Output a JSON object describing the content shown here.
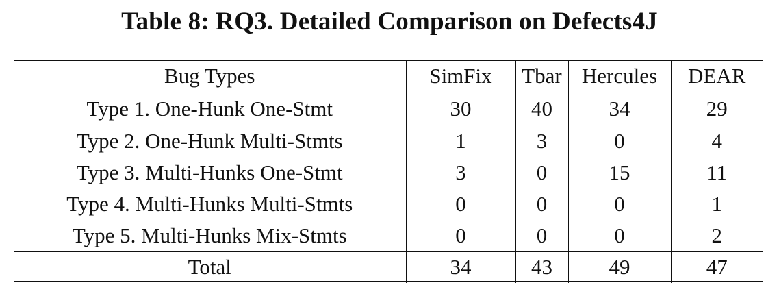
{
  "caption": "Table 8: RQ3. Detailed Comparison on Defects4J",
  "table": {
    "headers": [
      "Bug Types",
      "SimFix",
      "Tbar",
      "Hercules",
      "DEAR"
    ],
    "rows": [
      {
        "label": "Type 1. One-Hunk One-Stmt",
        "values": [
          "30",
          "40",
          "34",
          "29"
        ]
      },
      {
        "label": "Type 2. One-Hunk Multi-Stmts",
        "values": [
          "1",
          "3",
          "0",
          "4"
        ]
      },
      {
        "label": "Type 3. Multi-Hunks One-Stmt",
        "values": [
          "3",
          "0",
          "15",
          "11"
        ]
      },
      {
        "label": "Type 4. Multi-Hunks Multi-Stmts",
        "values": [
          "0",
          "0",
          "0",
          "1"
        ]
      },
      {
        "label": "Type 5. Multi-Hunks Mix-Stmts",
        "values": [
          "0",
          "0",
          "0",
          "2"
        ]
      }
    ],
    "total": {
      "label": "Total",
      "values": [
        "34",
        "43",
        "49",
        "47"
      ]
    }
  }
}
